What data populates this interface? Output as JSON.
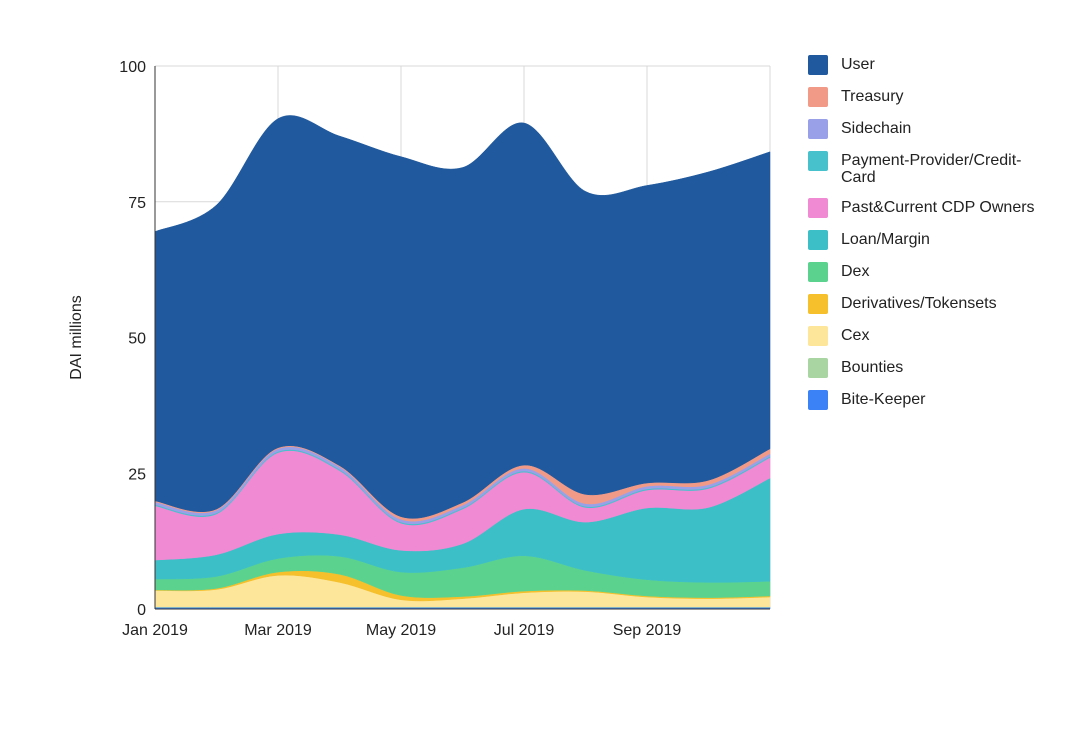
{
  "chart_data": {
    "type": "area",
    "stacked": true,
    "ylabel": "DAI millions",
    "ylim": [
      0,
      100
    ],
    "yticks": [
      0,
      25,
      50,
      75,
      100
    ],
    "x": [
      "Jan 2019",
      "Feb 2019",
      "Mar 2019",
      "Apr 2019",
      "May 2019",
      "Jun 2019",
      "Jul 2019",
      "Aug 2019",
      "Sep 2019",
      "Oct 2019",
      "Nov 2019"
    ],
    "xtick_labels": [
      "Jan 2019",
      "Mar 2019",
      "May 2019",
      "Jul 2019",
      "Sep 2019"
    ],
    "legend_position": "right",
    "series": [
      {
        "name": "Bite-Keeper",
        "color": "#3b82f6",
        "values": [
          0.3,
          0.3,
          0.3,
          0.3,
          0.3,
          0.3,
          0.3,
          0.3,
          0.3,
          0.3,
          0.3
        ]
      },
      {
        "name": "Bounties",
        "color": "#a8d5a2",
        "values": [
          0.1,
          0.1,
          0.1,
          0.1,
          0.1,
          0.1,
          0.1,
          0.1,
          0.1,
          0.1,
          0.1
        ]
      },
      {
        "name": "Cex",
        "color": "#fde59a",
        "values": [
          3.0,
          3.2,
          5.8,
          4.5,
          1.3,
          1.5,
          2.6,
          2.8,
          1.8,
          1.5,
          1.8
        ]
      },
      {
        "name": "Derivatives/Tokensets",
        "color": "#f5c02b",
        "values": [
          0.1,
          0.2,
          0.6,
          1.5,
          0.8,
          0.4,
          0.3,
          0.2,
          0.2,
          0.2,
          0.2
        ]
      },
      {
        "name": "Dex",
        "color": "#5bd38f",
        "values": [
          2.0,
          2.2,
          2.5,
          3.3,
          4.3,
          5.3,
          6.5,
          3.7,
          3.0,
          2.8,
          2.7
        ]
      },
      {
        "name": "Loan/Margin",
        "color": "#3dbfc8",
        "values": [
          3.5,
          4.0,
          4.5,
          4.0,
          4.0,
          4.4,
          8.6,
          8.9,
          13.2,
          13.8,
          19.0
        ]
      },
      {
        "name": "Past&Current CDP Owners",
        "color": "#ef8ad3",
        "values": [
          10.0,
          7.5,
          15.0,
          11.8,
          5.0,
          6.4,
          6.8,
          2.7,
          3.3,
          3.5,
          3.8
        ]
      },
      {
        "name": "Payment-Provider/Credit-Card",
        "color": "#47c1cc",
        "values": [
          0.2,
          0.2,
          0.2,
          0.2,
          0.2,
          0.2,
          0.2,
          0.2,
          0.2,
          0.2,
          0.2
        ]
      },
      {
        "name": "Sidechain",
        "color": "#9aa0e8",
        "values": [
          0.5,
          0.5,
          0.5,
          0.5,
          0.5,
          0.5,
          0.5,
          0.5,
          0.5,
          0.5,
          0.5
        ]
      },
      {
        "name": "Treasury",
        "color": "#f19a88",
        "values": [
          0.2,
          0.2,
          0.2,
          0.2,
          0.5,
          0.5,
          0.6,
          1.7,
          0.6,
          0.8,
          0.9
        ]
      },
      {
        "name": "User",
        "color": "#20599d",
        "values": [
          49.6,
          56.0,
          60.6,
          60.7,
          66.3,
          61.7,
          63.0,
          55.8,
          54.8,
          56.8,
          54.7
        ]
      }
    ],
    "legend_order": [
      "User",
      "Treasury",
      "Sidechain",
      "Payment-Provider/Credit-Card",
      "Past&Current CDP Owners",
      "Loan/Margin",
      "Dex",
      "Derivatives/Tokensets",
      "Cex",
      "Bounties",
      "Bite-Keeper"
    ]
  }
}
